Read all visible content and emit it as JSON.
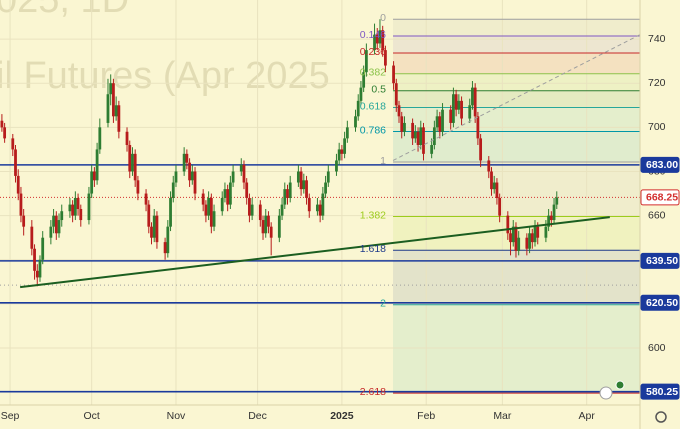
{
  "chart_data": {
    "type": "candlestick",
    "watermark": [
      "025, 1D",
      "il Futures (Apr 2025"
    ],
    "up_color": "#2e7d32",
    "down_color": "#b71c1c",
    "xlim": [
      -3.7,
      231.6
    ],
    "xticks": [
      {
        "value": 0,
        "label": "Sep"
      },
      {
        "value": 30,
        "label": "Oct"
      },
      {
        "value": 61,
        "label": "Nov"
      },
      {
        "value": 91,
        "label": "Dec"
      },
      {
        "value": 122,
        "label": "2025",
        "bold": true
      },
      {
        "value": 153,
        "label": "Feb"
      },
      {
        "value": 181,
        "label": "Mar"
      },
      {
        "value": 212,
        "label": "Apr"
      }
    ],
    "ylim": [
      574.2,
      757.7
    ],
    "yticks": [
      600,
      620,
      640,
      660,
      680,
      700,
      720,
      740
    ],
    "grid": true,
    "x": [
      -3,
      -2,
      1,
      2,
      3,
      4,
      5,
      8,
      9,
      10,
      11,
      12,
      15,
      16,
      17,
      18,
      19,
      22,
      23,
      24,
      25,
      26,
      29,
      30,
      31,
      32,
      33,
      36,
      37,
      38,
      39,
      40,
      43,
      44,
      45,
      46,
      47,
      50,
      51,
      52,
      53,
      54,
      57,
      58,
      59,
      60,
      61,
      64,
      65,
      66,
      67,
      68,
      71,
      72,
      73,
      74,
      75,
      78,
      79,
      80,
      81,
      82,
      85,
      86,
      87,
      88,
      89,
      92,
      93,
      94,
      95,
      96,
      99,
      100,
      101,
      102,
      103,
      106,
      107,
      108,
      109,
      110,
      113,
      114,
      115,
      116,
      117,
      120,
      121,
      122,
      123,
      124,
      127,
      128,
      129,
      130,
      131,
      134,
      135,
      136,
      137,
      138,
      141,
      142,
      143,
      144,
      145,
      148,
      149,
      150,
      151,
      152,
      155,
      156,
      157,
      158,
      159,
      162,
      163,
      164,
      165,
      166,
      169,
      170,
      171,
      172,
      173,
      176,
      177,
      178,
      179,
      180,
      183,
      184,
      185,
      186,
      187,
      190,
      191,
      192,
      193,
      194,
      197,
      198,
      199,
      200,
      201
    ],
    "ohlc": [
      [
        703,
        706,
        698,
        700
      ],
      [
        700,
        702,
        693,
        695
      ],
      [
        695,
        697,
        687,
        690
      ],
      [
        690,
        692,
        675,
        678
      ],
      [
        678,
        681,
        667,
        670
      ],
      [
        670,
        673,
        657,
        660
      ],
      [
        660,
        663,
        651,
        655
      ],
      [
        655,
        658,
        642,
        645
      ],
      [
        645,
        647,
        631,
        635
      ],
      [
        635,
        638,
        628,
        632
      ],
      [
        632,
        642,
        630,
        640
      ],
      [
        640,
        653,
        638,
        650
      ],
      [
        650,
        658,
        647,
        655
      ],
      [
        655,
        663,
        652,
        660
      ],
      [
        660,
        662,
        649,
        652
      ],
      [
        652,
        661,
        650,
        658
      ],
      [
        658,
        665,
        655,
        662
      ],
      [
        662,
        668,
        659,
        665
      ],
      [
        665,
        667,
        657,
        660
      ],
      [
        660,
        671,
        658,
        668
      ],
      [
        668,
        670,
        660,
        663
      ],
      [
        663,
        665,
        655,
        658
      ],
      [
        658,
        673,
        656,
        670
      ],
      [
        670,
        683,
        668,
        680
      ],
      [
        680,
        682,
        673,
        676
      ],
      [
        676,
        693,
        674,
        690
      ],
      [
        690,
        704,
        688,
        700
      ],
      [
        702,
        722,
        700,
        715
      ],
      [
        715,
        724,
        710,
        720
      ],
      [
        720,
        722,
        702,
        705
      ],
      [
        705,
        714,
        703,
        710
      ],
      [
        710,
        712,
        695,
        698
      ],
      [
        698,
        700,
        689,
        692
      ],
      [
        692,
        694,
        677,
        680
      ],
      [
        680,
        691,
        678,
        688
      ],
      [
        688,
        690,
        673,
        676
      ],
      [
        676,
        678,
        667,
        670
      ],
      [
        670,
        672,
        662,
        665
      ],
      [
        665,
        667,
        652,
        655
      ],
      [
        655,
        657,
        647,
        650
      ],
      [
        650,
        663,
        648,
        660
      ],
      [
        660,
        662,
        645,
        648
      ],
      [
        648,
        650,
        640,
        643
      ],
      [
        643,
        658,
        641,
        655
      ],
      [
        655,
        671,
        653,
        668
      ],
      [
        668,
        678,
        666,
        675
      ],
      [
        675,
        683,
        673,
        680
      ],
      [
        680,
        691,
        678,
        688
      ],
      [
        688,
        690,
        681,
        684
      ],
      [
        684,
        686,
        673,
        676
      ],
      [
        676,
        683,
        674,
        680
      ],
      [
        680,
        682,
        667,
        670
      ],
      [
        670,
        672,
        662,
        665
      ],
      [
        665,
        667,
        657,
        660
      ],
      [
        660,
        671,
        658,
        668
      ],
      [
        668,
        670,
        652,
        655
      ],
      [
        655,
        665,
        653,
        662
      ],
      [
        662,
        671,
        660,
        668
      ],
      [
        668,
        675,
        666,
        672
      ],
      [
        672,
        674,
        662,
        665
      ],
      [
        665,
        678,
        663,
        675
      ],
      [
        675,
        683,
        673,
        680
      ],
      [
        680,
        686,
        678,
        683
      ],
      [
        683,
        685,
        672,
        675
      ],
      [
        675,
        677,
        665,
        668
      ],
      [
        668,
        670,
        657,
        660
      ],
      [
        660,
        668,
        658,
        665
      ],
      [
        665,
        667,
        655,
        658
      ],
      [
        658,
        660,
        649,
        652
      ],
      [
        652,
        663,
        650,
        660
      ],
      [
        660,
        662,
        652,
        655
      ],
      [
        655,
        657,
        642,
        650
      ],
      [
        650,
        663,
        648,
        660
      ],
      [
        660,
        668,
        658,
        665
      ],
      [
        665,
        675,
        663,
        672
      ],
      [
        672,
        674,
        665,
        668
      ],
      [
        668,
        678,
        666,
        675
      ],
      [
        675,
        683,
        673,
        680
      ],
      [
        680,
        682,
        669,
        672
      ],
      [
        672,
        679,
        670,
        676
      ],
      [
        676,
        678,
        665,
        668
      ],
      [
        668,
        670,
        659,
        662
      ],
      [
        662,
        668,
        660,
        665
      ],
      [
        665,
        667,
        657,
        660
      ],
      [
        660,
        673,
        658,
        670
      ],
      [
        670,
        678,
        668,
        675
      ],
      [
        675,
        683,
        673,
        680
      ],
      [
        680,
        688,
        678,
        685
      ],
      [
        685,
        693,
        683,
        690
      ],
      [
        690,
        692,
        685,
        688
      ],
      [
        688,
        698,
        686,
        695
      ],
      [
        695,
        703,
        693,
        700
      ],
      [
        700,
        708,
        698,
        705
      ],
      [
        705,
        715,
        703,
        712
      ],
      [
        712,
        721,
        710,
        718
      ],
      [
        718,
        728,
        716,
        725
      ],
      [
        725,
        738,
        723,
        735
      ],
      [
        735,
        747,
        733,
        742
      ],
      [
        742,
        745,
        735,
        738
      ],
      [
        738,
        749,
        736,
        744
      ],
      [
        744,
        746,
        732,
        735
      ],
      [
        735,
        737,
        725,
        728
      ],
      [
        728,
        730,
        717,
        720
      ],
      [
        720,
        722,
        707,
        710
      ],
      [
        710,
        712,
        702,
        705
      ],
      [
        705,
        707,
        695,
        698
      ],
      [
        698,
        705,
        696,
        702
      ],
      [
        702,
        704,
        692,
        695
      ],
      [
        695,
        701,
        693,
        698
      ],
      [
        698,
        700,
        689,
        692
      ],
      [
        692,
        703,
        690,
        700
      ],
      [
        700,
        702,
        685,
        688
      ],
      [
        688,
        695,
        686,
        692
      ],
      [
        692,
        703,
        690,
        700
      ],
      [
        700,
        708,
        698,
        705
      ],
      [
        705,
        707,
        695,
        698
      ],
      [
        698,
        711,
        696,
        708
      ],
      [
        708,
        710,
        699,
        702
      ],
      [
        702,
        718,
        700,
        715
      ],
      [
        715,
        717,
        705,
        708
      ],
      [
        708,
        715,
        706,
        712
      ],
      [
        712,
        714,
        701,
        704
      ],
      [
        704,
        713,
        702,
        710
      ],
      [
        710,
        721,
        708,
        718
      ],
      [
        718,
        720,
        702,
        705
      ],
      [
        705,
        707,
        692,
        695
      ],
      [
        695,
        697,
        682,
        685
      ],
      [
        685,
        687,
        677,
        680
      ],
      [
        680,
        682,
        669,
        672
      ],
      [
        672,
        678,
        670,
        675
      ],
      [
        675,
        677,
        665,
        668
      ],
      [
        668,
        670,
        657,
        660
      ],
      [
        660,
        662,
        649,
        652
      ],
      [
        652,
        654,
        642,
        648
      ],
      [
        648,
        658,
        646,
        655
      ],
      [
        655,
        657,
        641,
        644
      ],
      [
        644,
        653,
        642,
        650
      ],
      [
        650,
        652,
        642,
        645
      ],
      [
        645,
        655,
        643,
        652
      ],
      [
        652,
        654,
        645,
        648
      ],
      [
        648,
        658,
        646,
        655
      ],
      [
        655,
        657,
        647,
        650
      ],
      [
        650,
        658,
        648,
        655
      ],
      [
        655,
        663,
        653,
        660
      ],
      [
        660,
        662,
        655,
        658
      ],
      [
        658,
        668,
        656,
        665
      ],
      [
        665,
        671,
        663,
        668.25
      ]
    ],
    "last_price_color": "#d32f2f",
    "levels": [
      {
        "value": 683,
        "label": "683.00"
      },
      {
        "value": 639.5,
        "label": "639.50"
      },
      {
        "value": 620.5,
        "label": "620.50"
      },
      {
        "value": 580.25,
        "label": "580.25"
      }
    ],
    "level_color": "#1a3a9c",
    "dotted_lines": [
      628.5
    ],
    "fib": {
      "start_x": 140.8,
      "levels": [
        {
          "label": "0",
          "value": 749,
          "color": "#9e9e9e"
        },
        {
          "label": "0.146",
          "value": 741.4,
          "color": "#7e57c2"
        },
        {
          "label": "0.236",
          "value": 733.7,
          "color": "#c62828"
        },
        {
          "label": "0.382",
          "value": 724.3,
          "color": "#8bc34a"
        },
        {
          "label": "0.5",
          "value": 716.6,
          "color": "#2e7d32"
        },
        {
          "label": "0.618",
          "value": 709,
          "color": "#26a69a"
        },
        {
          "label": "0.786",
          "value": 698.1,
          "color": "#0097a7"
        },
        {
          "label": "1",
          "value": 684.3,
          "color": "#9e9e9e"
        },
        {
          "label": "1.382",
          "value": 659.6,
          "color": "#9ccc1c"
        },
        {
          "label": "1.618",
          "value": 644.3,
          "color": "#1e3a8a"
        },
        {
          "label": "2",
          "value": 619.6,
          "color": "#26a69a"
        },
        {
          "label": "2.618",
          "value": 579.6,
          "color": "#c62828"
        }
      ]
    },
    "trendlines": [
      {
        "x": [
          3.7,
          220.5
        ],
        "y": [
          627.6,
          659.3
        ],
        "color": "#1b5e20",
        "dashed": false
      },
      {
        "x": [
          140.8,
          231.6
        ],
        "y": [
          685,
          742
        ],
        "color": "#9e9e9e",
        "dashed": true
      }
    ]
  }
}
